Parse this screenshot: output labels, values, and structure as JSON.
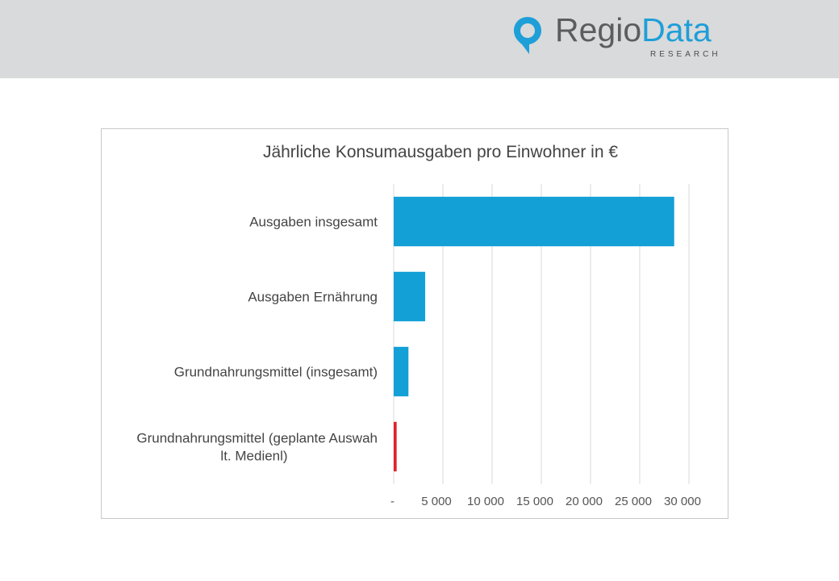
{
  "header": {
    "logo_main_1": "Regio",
    "logo_main_2": "Data",
    "logo_sub": "RESEARCH",
    "colors": {
      "band": "#d9dadb",
      "brand_blue": "#1e9fd8",
      "brand_gray": "#5b5d60"
    }
  },
  "chart_data": {
    "type": "bar",
    "orientation": "horizontal",
    "title": "Jährliche Konsumausgaben pro Einwohner in €",
    "categories": [
      [
        "Ausgaben insgesamt"
      ],
      [
        "Ausgaben Ernährung"
      ],
      [
        "Grundnahrungsmittel (insgesamt)"
      ],
      [
        "Grundnahrungsmittel (geplante Auswah",
        "lt. Medienl)"
      ]
    ],
    "values": [
      28500,
      3200,
      1500,
      300
    ],
    "bar_colors": [
      "#12a0d7",
      "#12a0d7",
      "#12a0d7",
      "#e0242a"
    ],
    "xlim": [
      0,
      30000
    ],
    "xticks": [
      0,
      5000,
      10000,
      15000,
      20000,
      25000,
      30000
    ],
    "xtick_labels": [
      "-",
      "5 000",
      "10 000",
      "15 000",
      "20 000",
      "25 000",
      "30 000"
    ],
    "grid": true,
    "legend": "none"
  }
}
